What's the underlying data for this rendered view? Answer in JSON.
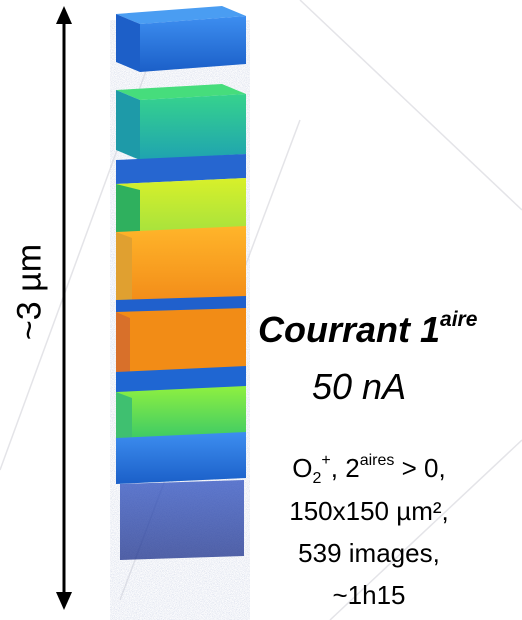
{
  "dimension_label": "~3 µm",
  "title": {
    "text": "Courrant 1",
    "superscript": "aire"
  },
  "current": "50 nA",
  "conditions": {
    "ion_base": "O",
    "ion_sub": "2",
    "ion_sup": "+",
    "ions_mid": ", 2",
    "ions_sup": "aires",
    "ions_tail": " > 0,",
    "area": "150x150 µm²,",
    "images": "539 images,",
    "duration": "~1h15"
  },
  "colors": {
    "blue": "#1f6fd6",
    "teal": "#1fb7a8",
    "green": "#5fe05a",
    "yellow_green": "#b8ee30",
    "orange": "#f7a21c",
    "dark_orange": "#f28a14"
  }
}
